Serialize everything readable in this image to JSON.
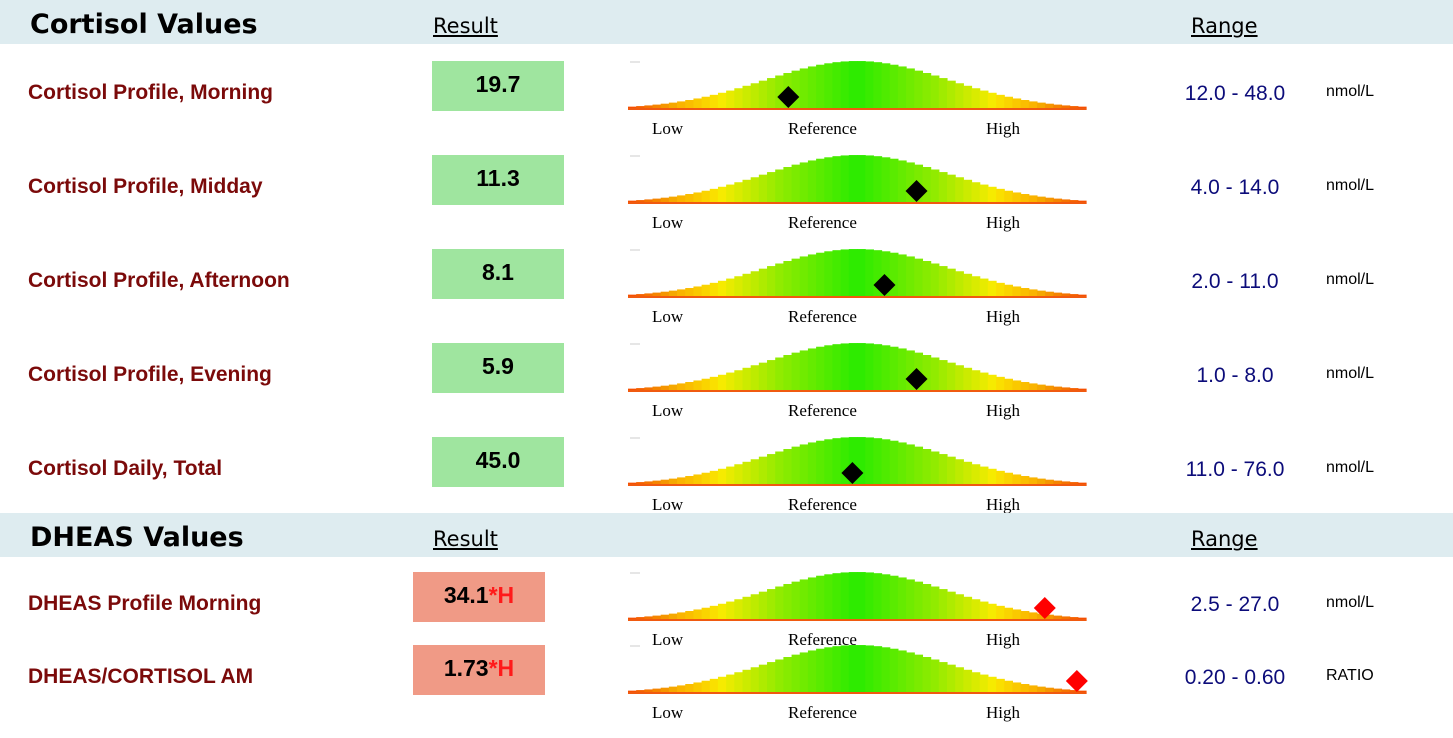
{
  "sections": [
    {
      "title": "Cortisol Values",
      "result_heading": "Result",
      "range_heading": "Range",
      "rows": [
        {
          "label": "Cortisol Profile, Morning",
          "result": "19.7",
          "flag": "",
          "range": "12.0 - 48.0",
          "unit": "nmol/L",
          "marker_position": 0.35,
          "marker_color": "#000000"
        },
        {
          "label": "Cortisol Profile, Midday",
          "result": "11.3",
          "flag": "",
          "range": "4.0 - 14.0",
          "unit": "nmol/L",
          "marker_position": 0.63,
          "marker_color": "#000000"
        },
        {
          "label": "Cortisol Profile, Afternoon",
          "result": "8.1",
          "flag": "",
          "range": "2.0 - 11.0",
          "unit": "nmol/L",
          "marker_position": 0.56,
          "marker_color": "#000000"
        },
        {
          "label": "Cortisol Profile, Evening",
          "result": "5.9",
          "flag": "",
          "range": "1.0 - 8.0",
          "unit": "nmol/L",
          "marker_position": 0.63,
          "marker_color": "#000000"
        },
        {
          "label": "Cortisol Daily, Total",
          "result": "45.0",
          "flag": "",
          "range": "11.0 - 76.0",
          "unit": "nmol/L",
          "marker_position": 0.49,
          "marker_color": "#000000"
        }
      ]
    },
    {
      "title": "DHEAS Values",
      "result_heading": "Result",
      "range_heading": "Range",
      "rows": [
        {
          "label": "DHEAS Profile Morning",
          "result": "34.1",
          "flag": "*H",
          "range": "2.5 - 27.0",
          "unit": "nmol/L",
          "marker_position": 0.91,
          "marker_color": "#ff0000"
        },
        {
          "label": "DHEAS/CORTISOL AM",
          "result": "1.73",
          "flag": "*H",
          "range": "0.20 - 0.60",
          "unit": "RATIO",
          "marker_position": 0.98,
          "marker_color": "#ff0000"
        }
      ]
    }
  ],
  "gauge_labels": {
    "low": "Low",
    "reference": "Reference",
    "high": "High"
  },
  "colors": {
    "section_header_bg": "#deecf0",
    "label_color": "#7b0a0a",
    "range_color": "#0c0c7a",
    "normal_result_bg": "#9fe59f",
    "high_result_bg": "#f09a86",
    "flag_color": "#ff1a1a"
  }
}
